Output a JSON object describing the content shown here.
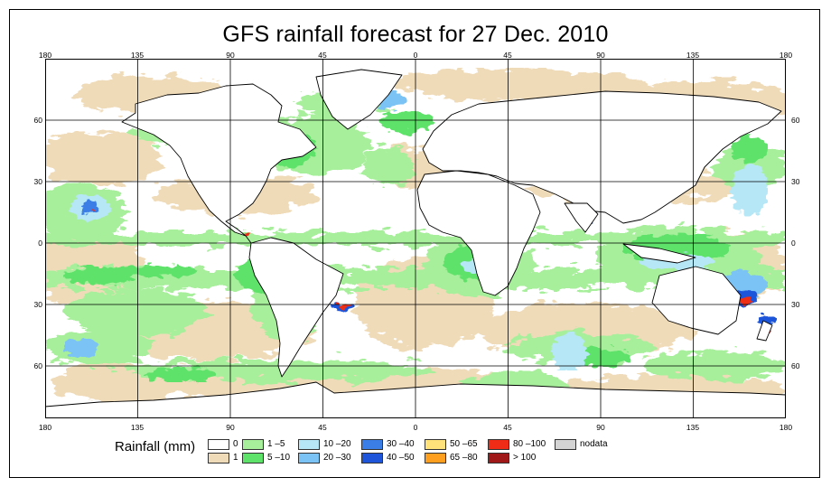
{
  "title": "GFS rainfall forecast for 27 Dec. 2010",
  "map": {
    "lon_ticks": [
      "180",
      "135",
      "90",
      "45",
      "0",
      "45",
      "90",
      "135",
      "180"
    ],
    "lat_ticks": [
      "60",
      "30",
      "0",
      "30",
      "60"
    ],
    "ocean_color": "#ffffff",
    "coastline_color": "#000000"
  },
  "legend": {
    "title": "Rainfall (mm)",
    "items": [
      {
        "label": "0",
        "color": "#ffffff"
      },
      {
        "label": "1",
        "color": "#f0dbb9"
      },
      {
        "label": "1 –5",
        "color": "#a7ef9b"
      },
      {
        "label": "5 –10",
        "color": "#5ee26a"
      },
      {
        "label": "10 –20",
        "color": "#b5e7f7"
      },
      {
        "label": "20 –30",
        "color": "#7cc3f5"
      },
      {
        "label": "30 –40",
        "color": "#3b7fe6"
      },
      {
        "label": "40 –50",
        "color": "#1e55d9"
      },
      {
        "label": "50 –65",
        "color": "#ffe27a"
      },
      {
        "label": "65 –80",
        "color": "#ff9f1f"
      },
      {
        "label": "80 –100",
        "color": "#ef2d16"
      },
      {
        "label": "> 100",
        "color": "#a01818"
      },
      {
        "label": "nodata",
        "color": "#d4d4d4"
      }
    ]
  }
}
